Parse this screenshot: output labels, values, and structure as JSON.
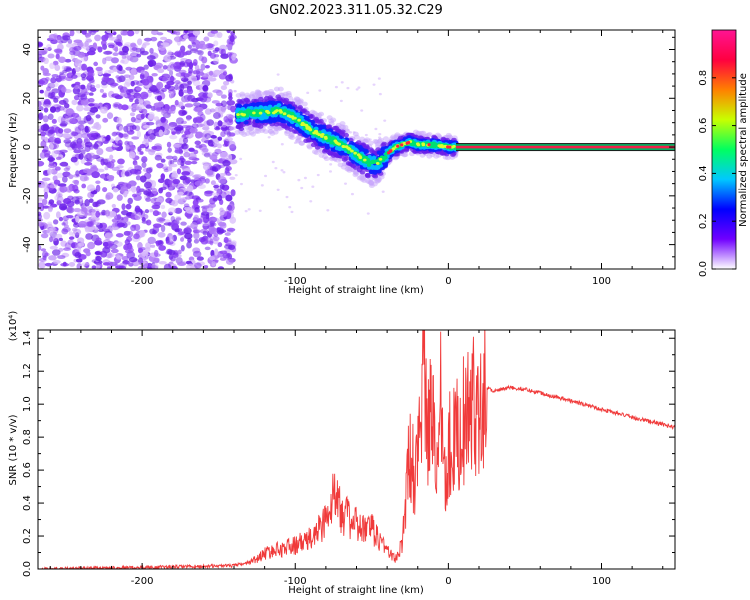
{
  "title": "GN02.2023.311.05.32.C29",
  "colors": {
    "snr_line": "#f03a3a",
    "ridge_core": "#00d08a",
    "noise": "#7a2cf0",
    "flat_line": "#00b060",
    "flat_center": "#f0204a"
  },
  "chart_data": [
    {
      "type": "heatmap",
      "xlabel": "Height of straight line (km)",
      "ylabel": "Frequency (Hz)",
      "xlim": [
        -268,
        148
      ],
      "ylim": [
        -50,
        48
      ],
      "xticks": [
        -200,
        -100,
        0,
        100
      ],
      "yticks": [
        -40,
        -20,
        0,
        20,
        40
      ],
      "xtick_labels": [
        "-200",
        "-100",
        "0",
        "100"
      ],
      "ytick_labels": [
        "-40",
        "-20",
        "0",
        "20",
        "40"
      ],
      "noise_region_x": [
        -268,
        -140
      ],
      "ridge": {
        "x": [
          -138,
          -130,
          -120,
          -110,
          -100,
          -90,
          -80,
          -70,
          -60,
          -50,
          -45,
          -40,
          -35,
          -30,
          -25,
          -20,
          -10,
          0,
          5
        ],
        "freq": [
          13,
          14,
          14,
          15,
          12,
          7,
          4,
          1,
          -3,
          -7,
          -6,
          -3,
          0,
          1,
          2,
          1,
          1,
          0,
          0
        ]
      },
      "flat_line": {
        "x": [
          5,
          148
        ],
        "freq": 0
      },
      "colorbar": {
        "label": "Normalized spectral amplitude",
        "range": [
          0,
          1
        ],
        "ticks": [
          0.0,
          0.2,
          0.4,
          0.6,
          0.8
        ],
        "tick_labels": [
          "0.0",
          "0.2",
          "0.4",
          "0.6",
          "0.8"
        ],
        "colormap": [
          "#ffffff",
          "#7000ff",
          "#0000ff",
          "#00c8ff",
          "#00ff60",
          "#c8ff00",
          "#ff8000",
          "#ff0040",
          "#ff1493"
        ]
      }
    },
    {
      "type": "line",
      "xlabel": "Height of straight line (km)",
      "ylabel": "SNR (10 * v/v)",
      "y_multiplier": "(x10⁴)",
      "xlim": [
        -268,
        148
      ],
      "ylim": [
        0,
        1.45
      ],
      "xticks": [
        -200,
        -100,
        0,
        100
      ],
      "yticks": [
        0.0,
        0.2,
        0.4,
        0.6,
        0.8,
        1.0,
        1.2,
        1.4
      ],
      "xtick_labels": [
        "-200",
        "-100",
        "0",
        "100"
      ],
      "ytick_labels": [
        "0.0",
        "0.2",
        "0.4",
        "0.6",
        "0.8",
        "1.0",
        "1.2",
        "1.4"
      ],
      "series": [
        {
          "x": [
            -268,
            -200,
            -140,
            -125,
            -120,
            -110,
            -100,
            -90,
            -80,
            -75,
            -72,
            -70,
            -65,
            -60,
            -55,
            -50,
            -45,
            -40,
            -35,
            -30,
            -28,
            -25,
            -22,
            -20,
            -18,
            -16,
            -14,
            -12,
            -10,
            -8,
            -5,
            -2,
            0,
            5,
            10,
            15,
            20,
            25,
            30,
            35,
            40,
            50,
            60,
            80,
            100,
            120,
            148
          ],
          "y": [
            0.0,
            0.01,
            0.02,
            0.05,
            0.08,
            0.1,
            0.12,
            0.15,
            0.25,
            0.35,
            0.45,
            0.3,
            0.25,
            0.22,
            0.2,
            0.2,
            0.15,
            0.1,
            0.05,
            0.15,
            0.4,
            0.75,
            0.55,
            0.85,
            1.0,
            1.45,
            0.75,
            0.9,
            1.0,
            0.55,
            1.1,
            0.6,
            0.75,
            0.8,
            0.9,
            0.95,
            1.05,
            1.1,
            1.08,
            1.09,
            1.1,
            1.09,
            1.07,
            1.02,
            0.97,
            0.92,
            0.86
          ]
        }
      ]
    }
  ]
}
